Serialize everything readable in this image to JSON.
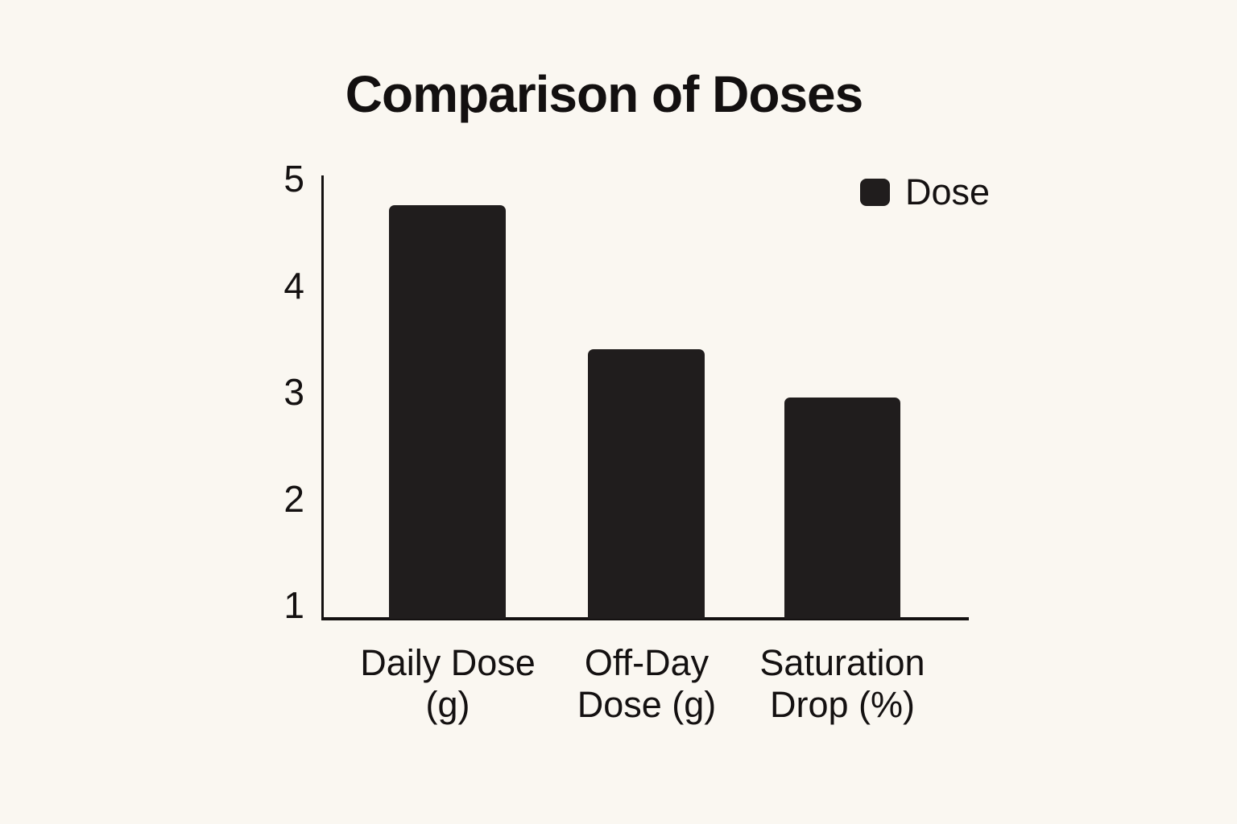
{
  "chart_data": {
    "type": "bar",
    "title": "Comparison of Doses",
    "categories": [
      "Daily Dose (g)",
      "Off-Day Dose (g)",
      "Saturation Drop (%)"
    ],
    "series": [
      {
        "name": "Dose",
        "values": [
          4.75,
          3.4,
          2.95
        ]
      }
    ],
    "y_ticks": [
      5,
      4,
      3,
      2,
      1
    ],
    "ylim": [
      1,
      5
    ],
    "xlabel": "",
    "ylabel": "",
    "grid": false,
    "legend": {
      "label": "Dose",
      "position": "top-right"
    },
    "colors": {
      "bar": "#201d1d",
      "background": "#faf7f1",
      "axis": "#141111",
      "text": "#131010"
    }
  }
}
